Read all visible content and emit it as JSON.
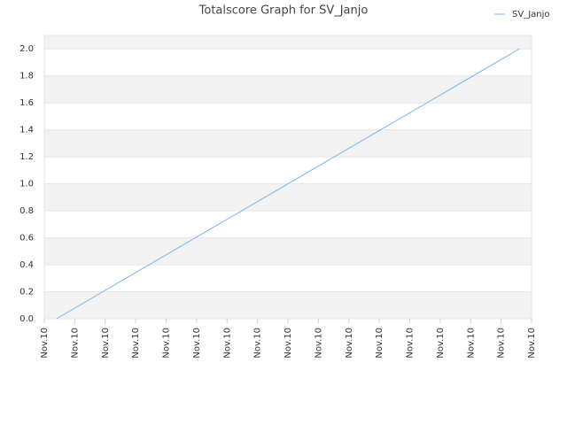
{
  "chart_data": {
    "type": "line",
    "title": "Totalscore Graph for SV_Janjo",
    "x": [
      0.4,
      15.6
    ],
    "series": [
      {
        "name": "SV_Janjo",
        "color": "#7cb5ec",
        "values": [
          0,
          2
        ]
      }
    ],
    "xlim": [
      0,
      16
    ],
    "xticks": [
      {
        "value": 0,
        "label": "Nov.10"
      },
      {
        "value": 1,
        "label": "Nov.10"
      },
      {
        "value": 2,
        "label": "Nov.10"
      },
      {
        "value": 3,
        "label": "Nov.10"
      },
      {
        "value": 4,
        "label": "Nov.10"
      },
      {
        "value": 5,
        "label": "Nov.10"
      },
      {
        "value": 6,
        "label": "Nov.10"
      },
      {
        "value": 7,
        "label": "Nov.10"
      },
      {
        "value": 8,
        "label": "Nov.10"
      },
      {
        "value": 9,
        "label": "Nov.10"
      },
      {
        "value": 10,
        "label": "Nov.10"
      },
      {
        "value": 11,
        "label": "Nov.10"
      },
      {
        "value": 12,
        "label": "Nov.10"
      },
      {
        "value": 13,
        "label": "Nov.10"
      },
      {
        "value": 14,
        "label": "Nov.10"
      },
      {
        "value": 15,
        "label": "Nov.10"
      },
      {
        "value": 16,
        "label": "Nov.10"
      }
    ],
    "ylim": [
      0,
      2.1
    ],
    "yticks": [
      {
        "value": 0,
        "label": "0.0"
      },
      0.2,
      0.4,
      0.6,
      0.8,
      {
        "value": 1,
        "label": "1.0"
      },
      1.2,
      1.4,
      1.6,
      1.8,
      {
        "value": 2,
        "label": "2.0"
      }
    ],
    "grid": true,
    "legend": "top-right"
  }
}
